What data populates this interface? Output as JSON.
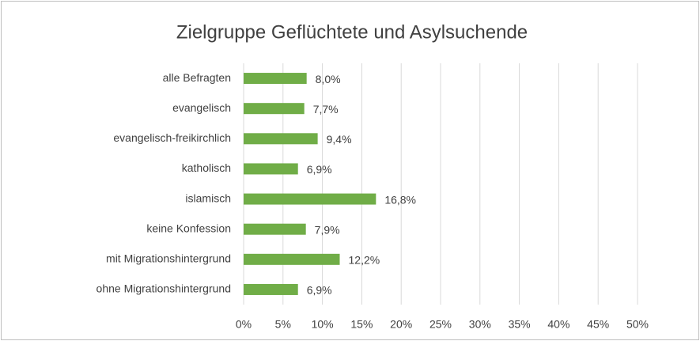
{
  "chart_data": {
    "type": "bar",
    "orientation": "horizontal",
    "title": "Zielgruppe Geflüchtete und Asylsuchende",
    "categories": [
      "alle Befragten",
      "evangelisch",
      "evangelisch-freikirchlich",
      "katholisch",
      "islamisch",
      "keine Konfession",
      "mit Migrationshintergrund",
      "ohne Migrationshintergrund"
    ],
    "values": [
      8.0,
      7.7,
      9.4,
      6.9,
      16.8,
      7.9,
      12.2,
      6.9
    ],
    "value_labels": [
      "8,0%",
      "7,7%",
      "9,4%",
      "6,9%",
      "16,8%",
      "7,9%",
      "12,2%",
      "6,9%"
    ],
    "color": "#70ad47",
    "xlim": [
      0,
      50
    ],
    "xticks": [
      {
        "value": 0,
        "label": "0%"
      },
      {
        "value": 5,
        "label": "5%"
      },
      {
        "value": 10,
        "label": "10%"
      },
      {
        "value": 15,
        "label": "15%"
      },
      {
        "value": 20,
        "label": "20%"
      },
      {
        "value": 25,
        "label": "25%"
      },
      {
        "value": 30,
        "label": "30%"
      },
      {
        "value": 35,
        "label": "35%"
      },
      {
        "value": 40,
        "label": "40%"
      },
      {
        "value": 45,
        "label": "45%"
      },
      {
        "value": 50,
        "label": "50%"
      }
    ],
    "grid": true
  }
}
